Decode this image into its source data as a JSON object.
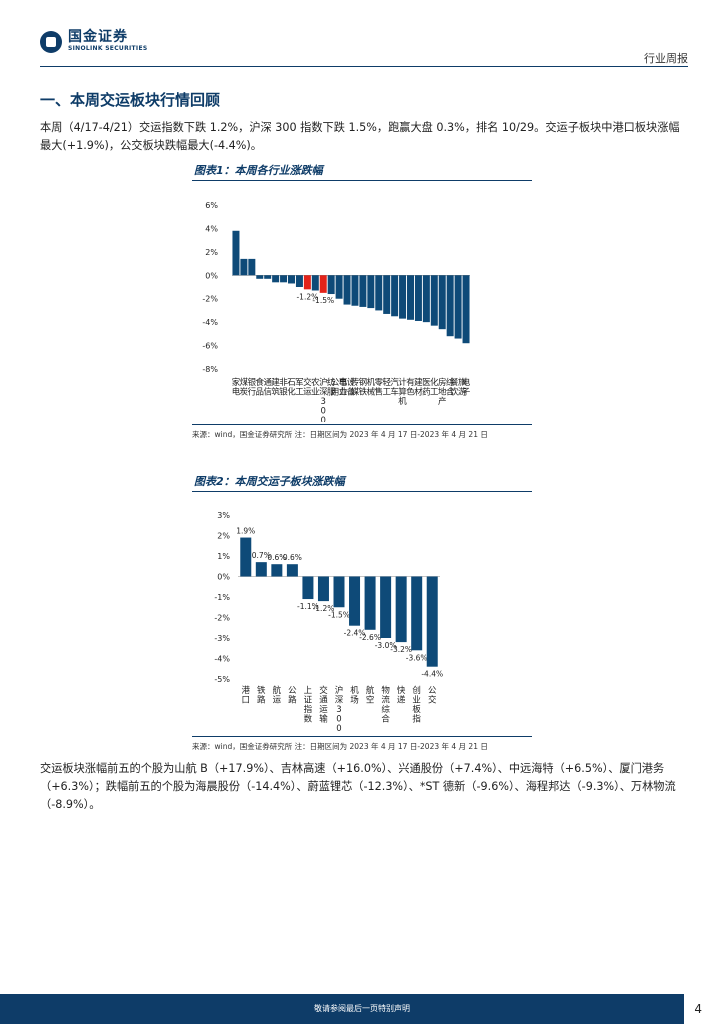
{
  "header": {
    "logo_cn": "国金证券",
    "logo_en": "SINOLINK SECURITIES",
    "report_type": "行业周报"
  },
  "section": {
    "title": "一、本周交运板块行情回顾"
  },
  "para1": "本周（4/17-4/21）交运指数下跌 1.2%，沪深 300 指数下跌 1.5%，跑赢大盘 0.3%，排名 10/29。交运子板块中港口板块涨幅最大(+1.9%)，公交板块跌幅最大(-4.4%)。",
  "fig1": {
    "title": "图表1：本周各行业涨跌幅",
    "source": "来源：wind，国金证券研究所   注：日期区间为 2023 年 4 月 17 日-2023 年 4 月 21 日"
  },
  "fig2": {
    "title": "图表2：本周交运子板块涨跌幅",
    "source": "来源：wind，国金证券研究所   注：日期区间为 2023 年 4 月 17 日-2023 年 4 月 21 日"
  },
  "para2": "交运板块涨幅前五的个股为山航 B（+17.9%）、吉林高速（+16.0%）、兴通股份（+7.4%）、中远海特（+6.5%）、厦门港务（+6.3%）；跌幅前五的个股为海晨股份（-14.4%）、蔚蓝锂芯（-12.3%）、*ST 德新（-9.6%）、海程邦达（-9.3%）、万林物流（-8.9%）。",
  "footer": {
    "disclaimer": "敬请参阅最后一页特别声明",
    "page": "4"
  },
  "colors": {
    "bar": "#0e4a78",
    "highlight": "#e2231a",
    "brand": "#0e3c68"
  },
  "chart_data": [
    {
      "type": "bar",
      "ylim": [
        -8,
        6
      ],
      "yticks": [
        6,
        4,
        2,
        0,
        -2,
        -4,
        -6,
        -8
      ],
      "tick_format": "%",
      "categories": [
        "家电",
        "煤炭",
        "银行",
        "食品",
        "通信",
        "建筑",
        "非银",
        "石化",
        "军工",
        "交运",
        "农业",
        "沪深300",
        "纺服",
        "公用事业",
        "电力设备",
        "传媒",
        "钢铁",
        "机械",
        "零售",
        "轻工",
        "汽车",
        "计算机",
        "有色",
        "建材",
        "医药",
        "化工",
        "房地产",
        "综合",
        "餐饮旅游",
        "电子"
      ],
      "values": [
        3.8,
        1.4,
        1.4,
        -0.3,
        -0.3,
        -0.6,
        -0.6,
        -0.7,
        -1.0,
        -1.2,
        -1.3,
        -1.5,
        -1.6,
        -2.0,
        -2.5,
        -2.6,
        -2.7,
        -2.8,
        -3.0,
        -3.3,
        -3.5,
        -3.7,
        -3.8,
        -3.9,
        -4.0,
        -4.3,
        -4.6,
        -5.2,
        -5.4,
        -5.8
      ],
      "highlight": [
        "交运",
        "沪深300"
      ],
      "data_labels": {
        "交运": "-1.2%",
        "沪深300": "-1.5%"
      }
    },
    {
      "type": "bar",
      "ylim": [
        -5,
        3
      ],
      "yticks": [
        3,
        2,
        1,
        0,
        -1,
        -2,
        -3,
        -4,
        -5
      ],
      "tick_format": "%",
      "categories": [
        "港口",
        "铁路",
        "航运",
        "公路",
        "上证指数",
        "交通运输",
        "沪深300",
        "机场",
        "航空",
        "物流综合",
        "快递",
        "创业板指",
        "公交"
      ],
      "values": [
        1.9,
        0.7,
        0.6,
        0.6,
        -1.1,
        -1.2,
        -1.5,
        -2.4,
        -2.6,
        -3.0,
        -3.2,
        -3.6,
        -4.4
      ],
      "labels": [
        "1.9%",
        "0.7%",
        "0.6%",
        "0.6%",
        "-1.1%",
        "-1.2%",
        "-1.5%",
        "-2.4%",
        "-2.6%",
        "-3.0%",
        "-3.2%",
        "-3.6%",
        "-4.4%"
      ]
    }
  ]
}
